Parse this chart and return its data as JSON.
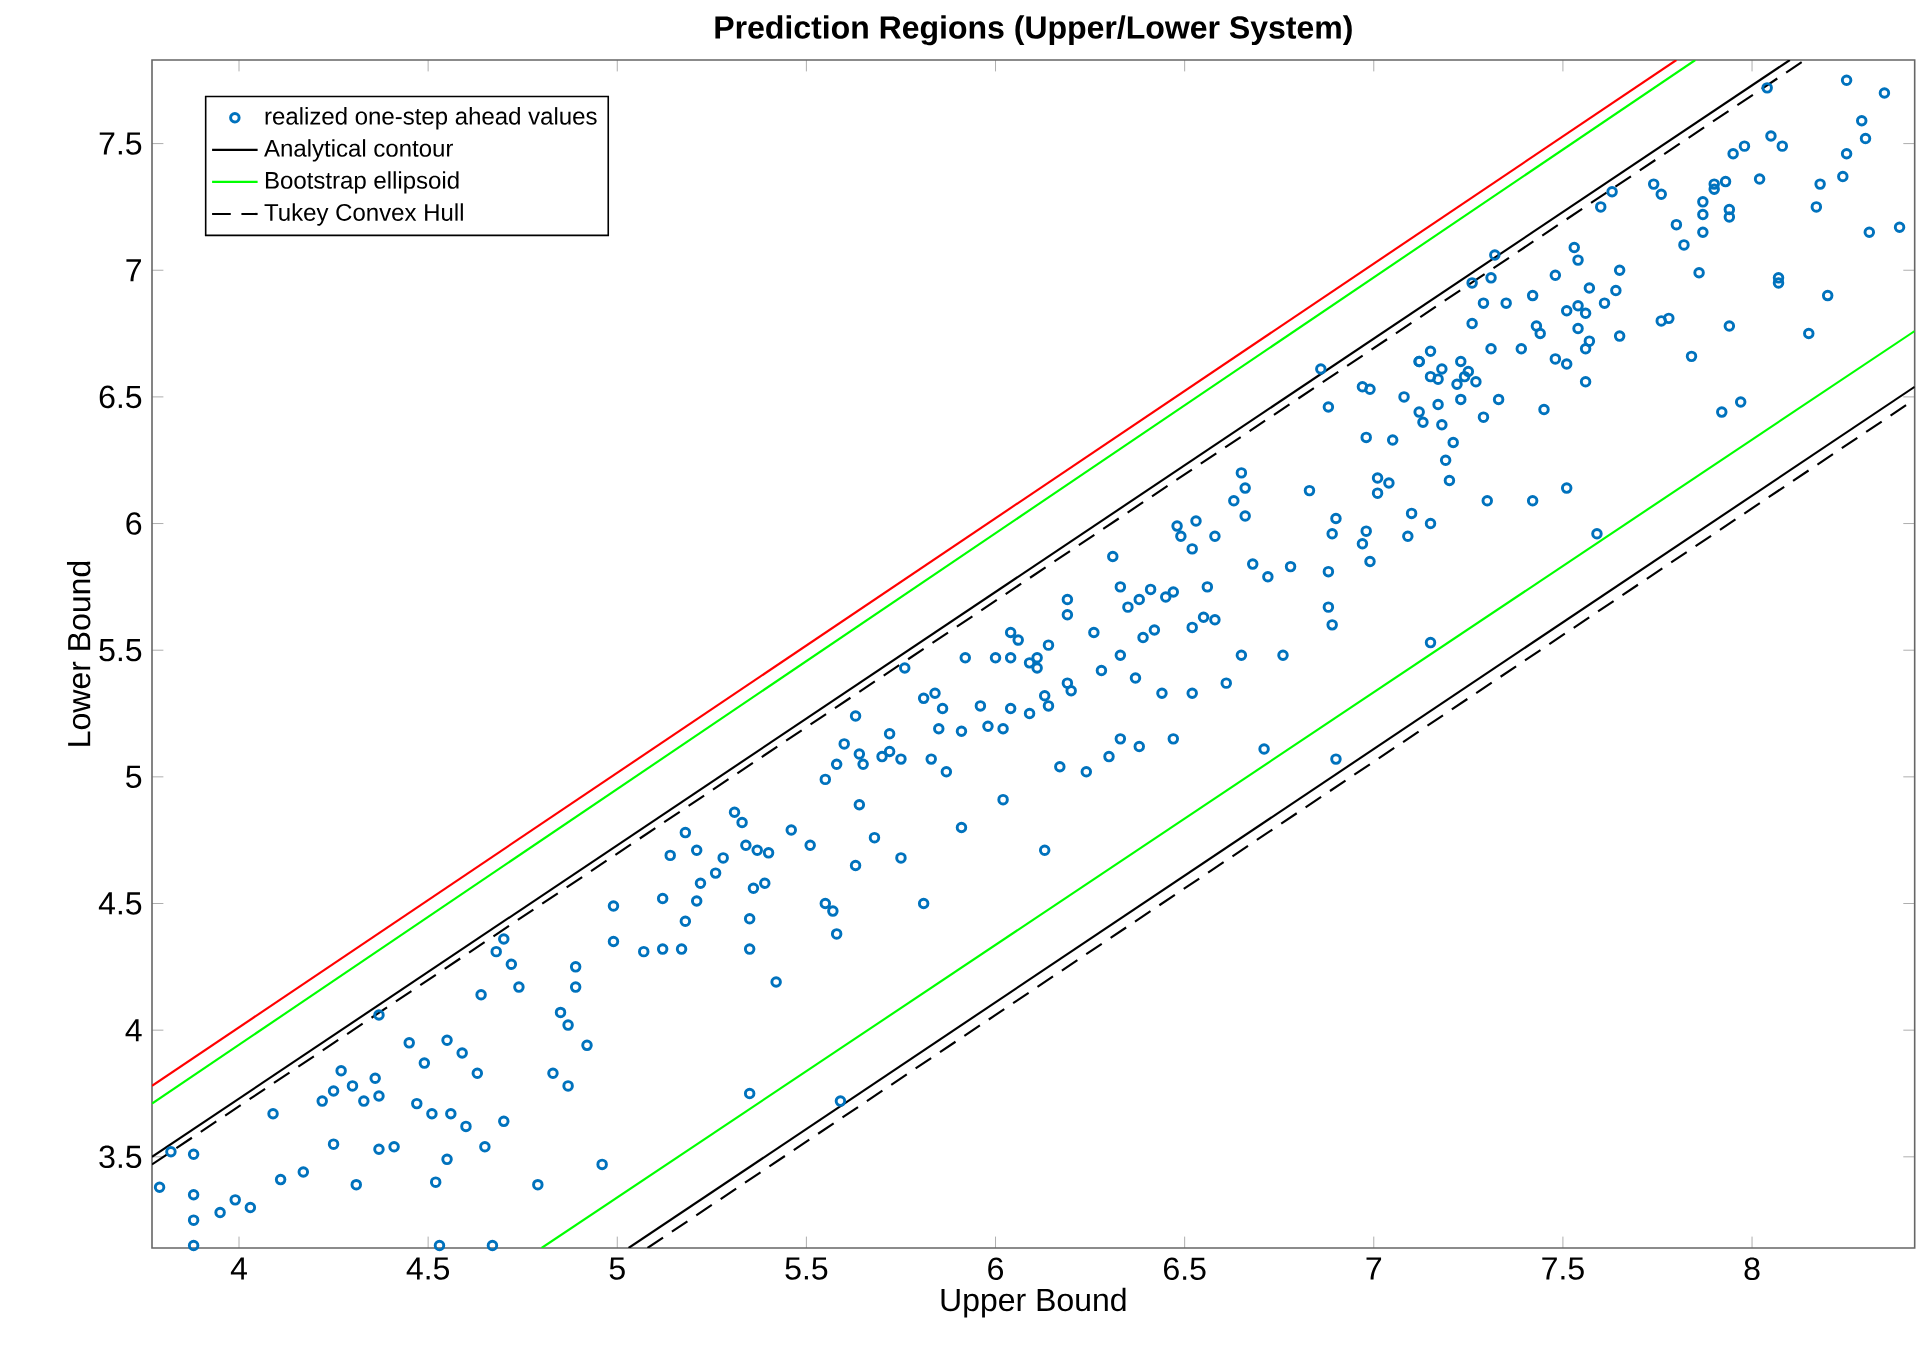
{
  "chart_data": {
    "type": "scatter",
    "title": "Prediction Regions (Upper/Lower System)",
    "xlabel": "Upper Bound",
    "ylabel": "Lower Bound",
    "xlim": [
      3.77,
      8.43
    ],
    "ylim": [
      3.14,
      7.83
    ],
    "xticks": [
      4,
      4.5,
      5,
      5.5,
      6,
      6.5,
      7,
      7.5,
      8
    ],
    "yticks": [
      3.5,
      4,
      4.5,
      5,
      5.5,
      6,
      6.5,
      7,
      7.5
    ],
    "grid": false,
    "legend": "top left",
    "series": [
      {
        "name": "realized one-step ahead values",
        "marker": "circle",
        "color": "#0072bd",
        "x": [
          3.79,
          3.82,
          3.88,
          3.88,
          3.88,
          3.88,
          3.95,
          3.99,
          4.03,
          4.09,
          4.11,
          4.17,
          4.22,
          4.25,
          4.27,
          4.3,
          4.33,
          4.25,
          4.31,
          4.36,
          4.37,
          4.37,
          4.37,
          4.41,
          4.45,
          4.47,
          4.49,
          4.51,
          4.52,
          4.53,
          4.55,
          4.55,
          4.56,
          4.59,
          4.6,
          4.63,
          4.65,
          4.67,
          4.68,
          4.7,
          4.72,
          4.74,
          4.64,
          4.7,
          4.79,
          4.83,
          4.85,
          4.87,
          4.87,
          4.89,
          4.89,
          4.92,
          4.96,
          4.99,
          4.99,
          5.07,
          5.12,
          5.17,
          5.12,
          5.14,
          5.18,
          5.18,
          5.21,
          5.21,
          5.22,
          5.26,
          5.28,
          5.31,
          5.33,
          5.34,
          5.35,
          5.35,
          5.36,
          5.37,
          5.39,
          5.4,
          5.42,
          5.35,
          5.46,
          5.51,
          5.55,
          5.55,
          5.57,
          5.58,
          5.58,
          5.59,
          5.6,
          5.63,
          5.63,
          5.64,
          5.64,
          5.65,
          5.68,
          5.7,
          5.72,
          5.72,
          5.75,
          5.75,
          5.76,
          5.81,
          5.81,
          5.83,
          5.84,
          5.85,
          5.86,
          5.87,
          5.91,
          5.91,
          5.92,
          5.96,
          5.98,
          6.0,
          6.02,
          6.02,
          6.04,
          6.04,
          6.06,
          6.04,
          6.09,
          6.09,
          6.11,
          6.11,
          6.13,
          6.13,
          6.14,
          6.14,
          6.17,
          6.19,
          6.19,
          6.19,
          6.2,
          6.24,
          6.3,
          6.33,
          6.38,
          6.47,
          6.31,
          6.33,
          6.35,
          6.38,
          6.41,
          6.45,
          6.47,
          6.33,
          6.28,
          6.37,
          6.39,
          6.42,
          6.44,
          6.26,
          6.48,
          6.49,
          6.52,
          6.53,
          6.58,
          6.52,
          6.52,
          6.55,
          6.58,
          6.56,
          6.61,
          6.63,
          6.65,
          6.66,
          6.66,
          6.65,
          6.68,
          6.71,
          6.72,
          6.76,
          6.78,
          6.83,
          6.86,
          6.88,
          6.88,
          6.88,
          6.89,
          6.9,
          6.89,
          6.9,
          6.97,
          6.98,
          6.99,
          6.97,
          6.99,
          6.98,
          7.01,
          7.01,
          7.04,
          7.05,
          7.08,
          7.1,
          7.09,
          7.15,
          7.15,
          7.12,
          7.13,
          7.12,
          7.18,
          7.17,
          7.19,
          7.2,
          7.21,
          7.23,
          7.29,
          7.3,
          8.04,
          8.25,
          8.35,
          8.29,
          8.3,
          8.25,
          8.24,
          8.18,
          8.17,
          8.31,
          8.39,
          8.05,
          8.08,
          7.98,
          7.95,
          8.02,
          7.93,
          7.9,
          7.9,
          7.87,
          7.87,
          7.87,
          7.94,
          7.94,
          7.82,
          7.8,
          7.86,
          7.74,
          7.76,
          7.63,
          7.6,
          8.07,
          8.07,
          8.2,
          8.15,
          7.94,
          7.84,
          7.76,
          7.78,
          7.92,
          7.97,
          7.59,
          7.53,
          7.54,
          7.65,
          7.64,
          7.57,
          7.61,
          7.54,
          7.56,
          7.51,
          7.54,
          7.57,
          7.56,
          7.65,
          7.56,
          7.48,
          7.42,
          7.43,
          7.44,
          7.39,
          7.48,
          7.51,
          7.45,
          7.51,
          7.42,
          7.32,
          7.31,
          7.26,
          7.35,
          7.29,
          7.26,
          7.31,
          7.33,
          7.15,
          7.12,
          7.23,
          7.18,
          7.15,
          7.25,
          7.24,
          7.17,
          7.27,
          7.22
        ],
        "values": [
          3.38,
          3.52,
          3.51,
          3.35,
          3.25,
          3.15,
          3.28,
          3.33,
          3.3,
          3.67,
          3.41,
          3.44,
          3.72,
          3.76,
          3.84,
          3.78,
          3.72,
          3.55,
          3.39,
          3.81,
          3.74,
          4.06,
          3.53,
          3.54,
          3.95,
          3.71,
          3.87,
          3.67,
          3.4,
          3.15,
          3.96,
          3.49,
          3.67,
          3.91,
          3.62,
          3.83,
          3.54,
          3.15,
          4.31,
          4.36,
          4.26,
          4.17,
          4.14,
          3.64,
          3.39,
          3.83,
          4.07,
          4.02,
          3.78,
          4.25,
          4.17,
          3.94,
          3.47,
          4.49,
          4.35,
          4.31,
          4.32,
          4.32,
          4.52,
          4.69,
          4.78,
          4.43,
          4.51,
          4.71,
          4.58,
          4.62,
          4.68,
          4.86,
          4.82,
          4.73,
          4.44,
          4.32,
          4.56,
          4.71,
          4.58,
          4.7,
          4.19,
          3.75,
          4.79,
          4.73,
          4.99,
          4.5,
          4.47,
          4.38,
          5.05,
          3.72,
          5.13,
          4.65,
          5.24,
          5.09,
          4.89,
          5.05,
          4.76,
          5.08,
          5.17,
          5.1,
          4.68,
          5.07,
          5.43,
          4.5,
          5.31,
          5.07,
          5.33,
          5.19,
          5.27,
          5.02,
          5.18,
          4.8,
          5.47,
          5.28,
          5.2,
          5.47,
          4.91,
          5.19,
          5.47,
          5.57,
          5.54,
          5.27,
          5.25,
          5.45,
          5.47,
          5.43,
          4.71,
          5.32,
          5.28,
          5.52,
          5.04,
          5.7,
          5.64,
          5.37,
          5.34,
          5.02,
          5.08,
          5.15,
          5.12,
          5.15,
          5.87,
          5.75,
          5.67,
          5.7,
          5.74,
          5.71,
          5.73,
          5.48,
          5.42,
          5.39,
          5.55,
          5.58,
          5.33,
          5.57,
          5.99,
          5.95,
          5.9,
          6.01,
          5.95,
          5.59,
          5.33,
          5.63,
          5.62,
          5.75,
          5.37,
          6.09,
          6.2,
          6.14,
          6.03,
          5.48,
          5.84,
          5.11,
          5.79,
          5.48,
          5.83,
          6.13,
          6.61,
          6.46,
          5.81,
          5.67,
          5.6,
          5.07,
          5.96,
          6.02,
          5.92,
          5.97,
          5.85,
          6.54,
          6.53,
          6.34,
          6.18,
          6.12,
          6.16,
          6.33,
          6.5,
          6.04,
          5.95,
          6.0,
          5.53,
          6.44,
          6.4,
          6.64,
          6.39,
          6.47,
          6.25,
          6.17,
          6.32,
          6.49,
          6.42,
          6.09,
          7.72,
          7.75,
          7.7,
          7.59,
          7.52,
          7.46,
          7.37,
          7.34,
          7.25,
          7.15,
          7.17,
          7.53,
          7.49,
          7.49,
          7.46,
          7.36,
          7.35,
          7.34,
          7.32,
          7.27,
          7.22,
          7.15,
          7.24,
          7.21,
          7.1,
          7.18,
          6.99,
          7.34,
          7.3,
          7.31,
          7.25,
          6.97,
          6.95,
          6.9,
          6.75,
          6.78,
          6.66,
          6.8,
          6.81,
          6.44,
          6.48,
          5.96,
          7.09,
          7.04,
          7.0,
          6.92,
          6.93,
          6.87,
          6.86,
          6.83,
          6.84,
          6.77,
          6.72,
          6.69,
          6.74,
          6.56,
          6.98,
          6.9,
          6.78,
          6.75,
          6.69,
          6.65,
          6.63,
          6.45,
          6.14,
          6.09,
          7.06,
          6.97,
          6.95,
          6.87,
          6.87,
          6.79,
          6.69,
          6.49,
          6.68,
          6.64,
          6.64,
          6.61,
          6.58,
          6.6,
          6.58,
          6.57,
          6.56,
          6.55
        ]
      },
      {
        "type": "line",
        "color": "#ff0000",
        "line_style": "solid",
        "x": [
          3.77,
          7.8
        ],
        "values": [
          3.78,
          7.83
        ]
      },
      {
        "name": "Analytical contour",
        "type": "line",
        "color": "#000000",
        "line_style": "solid",
        "x": [
          3.77,
          8.1
        ],
        "values": [
          3.5,
          7.83
        ]
      },
      {
        "name": "Bootstrap ellipsoid",
        "type": "line",
        "color": "#00ff00",
        "line_style": "solid",
        "x": [
          3.77,
          7.85
        ],
        "values": [
          3.71,
          7.83
        ]
      },
      {
        "name": "Tukey Convex Hull",
        "type": "line",
        "color": "#000000",
        "line_style": "dashed",
        "x": [
          3.77,
          8.14
        ],
        "values": [
          3.47,
          7.83
        ]
      },
      {
        "type": "line",
        "color": "#00ff00",
        "line_style": "solid",
        "x": [
          4.8,
          8.43
        ],
        "values": [
          3.14,
          6.76
        ]
      },
      {
        "type": "line",
        "color": "#000000",
        "line_style": "solid",
        "x": [
          5.03,
          8.43
        ],
        "values": [
          3.14,
          6.54
        ]
      },
      {
        "type": "line",
        "color": "#000000",
        "line_style": "dashed",
        "x": [
          5.08,
          8.43
        ],
        "values": [
          3.14,
          6.49
        ]
      }
    ]
  }
}
